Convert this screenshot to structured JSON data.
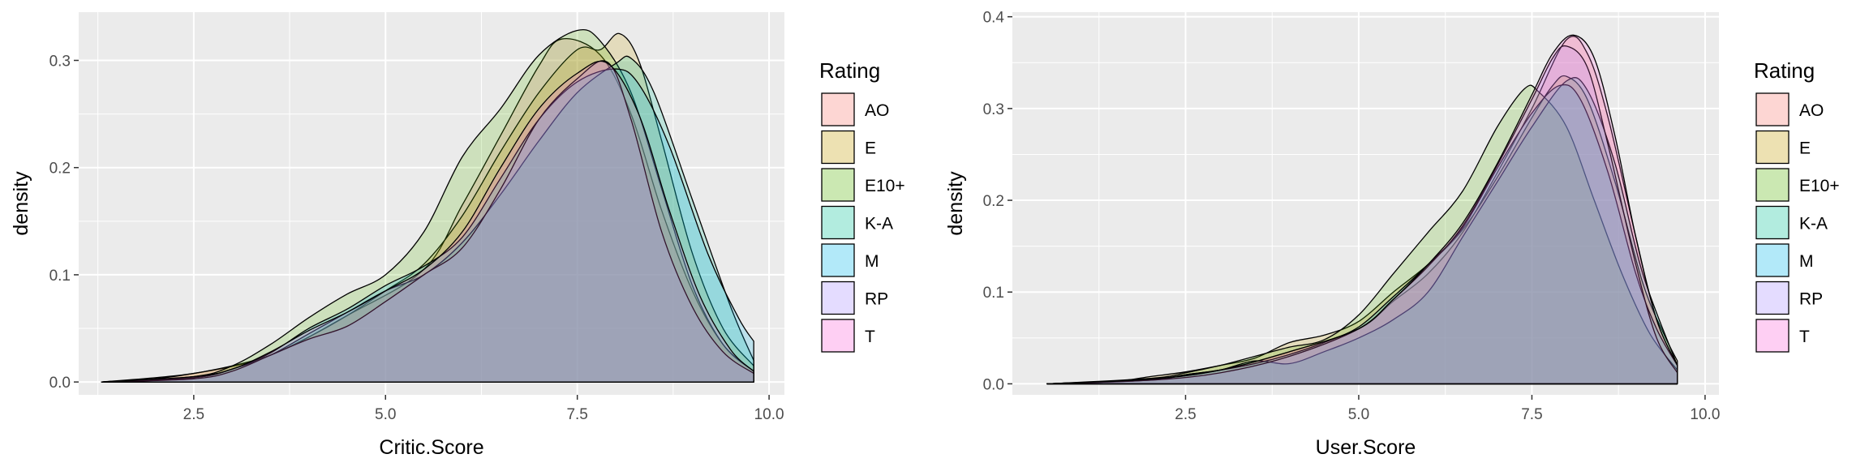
{
  "chart_data": [
    {
      "type": "area",
      "title": "",
      "xlabel": "Critic.Score",
      "ylabel": "density",
      "xlim": [
        1.0,
        10.2
      ],
      "ylim": [
        -0.012,
        0.345
      ],
      "x_ticks": [
        2.5,
        5.0,
        7.5,
        10.0
      ],
      "x_tick_labels": [
        "2.5",
        "5.0",
        "7.5",
        "10.0"
      ],
      "y_ticks": [
        0.0,
        0.1,
        0.2,
        0.3
      ],
      "y_tick_labels": [
        "0.0",
        "0.1",
        "0.2",
        "0.3"
      ],
      "grid": true,
      "legend_title": "Rating",
      "legend_position": "right",
      "series": [
        {
          "name": "AO",
          "color": "#F8766D",
          "points": [
            [
              1.3,
              0
            ],
            [
              2.5,
              0.008
            ],
            [
              3.5,
              0.025
            ],
            [
              4.5,
              0.062
            ],
            [
              5.5,
              0.105
            ],
            [
              6.0,
              0.165
            ],
            [
              6.5,
              0.23
            ],
            [
              7.0,
              0.295
            ],
            [
              7.3,
              0.32
            ],
            [
              7.8,
              0.305
            ],
            [
              8.2,
              0.25
            ],
            [
              8.6,
              0.16
            ],
            [
              9.0,
              0.085
            ],
            [
              9.4,
              0.035
            ],
            [
              9.8,
              0.01
            ]
          ]
        },
        {
          "name": "E",
          "color": "#C49A00",
          "points": [
            [
              1.3,
              0
            ],
            [
              2.0,
              0.003
            ],
            [
              2.5,
              0.008
            ],
            [
              3.0,
              0.015
            ],
            [
              3.5,
              0.025
            ],
            [
              4.0,
              0.042
            ],
            [
              4.5,
              0.062
            ],
            [
              5.0,
              0.085
            ],
            [
              5.5,
              0.11
            ],
            [
              6.0,
              0.155
            ],
            [
              6.5,
              0.215
            ],
            [
              7.0,
              0.27
            ],
            [
              7.5,
              0.31
            ],
            [
              7.8,
              0.31
            ],
            [
              8.05,
              0.325
            ],
            [
              8.3,
              0.3
            ],
            [
              8.6,
              0.225
            ],
            [
              9.0,
              0.12
            ],
            [
              9.4,
              0.05
            ],
            [
              9.8,
              0.015
            ]
          ]
        },
        {
          "name": "E10+",
          "color": "#53B400",
          "points": [
            [
              1.3,
              0
            ],
            [
              2.5,
              0.005
            ],
            [
              3.0,
              0.015
            ],
            [
              3.5,
              0.035
            ],
            [
              4.0,
              0.06
            ],
            [
              4.5,
              0.082
            ],
            [
              5.0,
              0.1
            ],
            [
              5.5,
              0.14
            ],
            [
              6.0,
              0.21
            ],
            [
              6.5,
              0.255
            ],
            [
              7.0,
              0.305
            ],
            [
              7.5,
              0.328
            ],
            [
              7.8,
              0.318
            ],
            [
              8.2,
              0.27
            ],
            [
              8.6,
              0.18
            ],
            [
              9.0,
              0.09
            ],
            [
              9.4,
              0.035
            ],
            [
              9.8,
              0.01
            ]
          ]
        },
        {
          "name": "K-A",
          "color": "#00C094",
          "points": [
            [
              1.3,
              0
            ],
            [
              2.5,
              0.004
            ],
            [
              3.0,
              0.012
            ],
            [
              3.5,
              0.025
            ],
            [
              4.0,
              0.045
            ],
            [
              4.5,
              0.065
            ],
            [
              5.0,
              0.085
            ],
            [
              5.5,
              0.1
            ],
            [
              6.0,
              0.13
            ],
            [
              6.5,
              0.175
            ],
            [
              7.0,
              0.225
            ],
            [
              7.5,
              0.27
            ],
            [
              8.0,
              0.297
            ],
            [
              8.2,
              0.302
            ],
            [
              8.5,
              0.27
            ],
            [
              9.0,
              0.17
            ],
            [
              9.5,
              0.07
            ],
            [
              9.8,
              0.02
            ]
          ]
        },
        {
          "name": "M",
          "color": "#00B6EB",
          "points": [
            [
              1.3,
              0
            ],
            [
              2.5,
              0.004
            ],
            [
              3.0,
              0.012
            ],
            [
              3.5,
              0.027
            ],
            [
              4.0,
              0.05
            ],
            [
              4.5,
              0.068
            ],
            [
              5.0,
              0.09
            ],
            [
              5.5,
              0.108
            ],
            [
              6.0,
              0.135
            ],
            [
              6.5,
              0.19
            ],
            [
              7.0,
              0.245
            ],
            [
              7.5,
              0.28
            ],
            [
              8.0,
              0.292
            ],
            [
              8.3,
              0.278
            ],
            [
              8.7,
              0.22
            ],
            [
              9.2,
              0.12
            ],
            [
              9.6,
              0.06
            ],
            [
              9.8,
              0.038
            ]
          ]
        },
        {
          "name": "RP",
          "color": "#A58AFF",
          "points": [
            [
              1.3,
              0
            ],
            [
              2.5,
              0.003
            ],
            [
              3.0,
              0.01
            ],
            [
              3.5,
              0.025
            ],
            [
              4.0,
              0.04
            ],
            [
              4.5,
              0.052
            ],
            [
              5.0,
              0.075
            ],
            [
              5.5,
              0.1
            ],
            [
              6.0,
              0.125
            ],
            [
              6.5,
              0.18
            ],
            [
              7.0,
              0.245
            ],
            [
              7.5,
              0.283
            ],
            [
              7.9,
              0.298
            ],
            [
              8.2,
              0.245
            ],
            [
              8.6,
              0.14
            ],
            [
              9.0,
              0.07
            ],
            [
              9.4,
              0.028
            ],
            [
              9.8,
              0.008
            ]
          ]
        },
        {
          "name": "T",
          "color": "#FB61D7",
          "points": [
            [
              1.3,
              0
            ],
            [
              2.5,
              0.005
            ],
            [
              3.0,
              0.012
            ],
            [
              3.5,
              0.028
            ],
            [
              4.0,
              0.048
            ],
            [
              4.5,
              0.065
            ],
            [
              5.0,
              0.085
            ],
            [
              5.5,
              0.105
            ],
            [
              6.0,
              0.14
            ],
            [
              6.5,
              0.2
            ],
            [
              7.0,
              0.255
            ],
            [
              7.5,
              0.288
            ],
            [
              7.9,
              0.297
            ],
            [
              8.3,
              0.25
            ],
            [
              8.7,
              0.16
            ],
            [
              9.1,
              0.08
            ],
            [
              9.5,
              0.03
            ],
            [
              9.8,
              0.01
            ]
          ]
        }
      ]
    },
    {
      "type": "area",
      "title": "",
      "xlabel": "User.Score",
      "ylabel": "density",
      "xlim": [
        0.0,
        10.2
      ],
      "ylim": [
        -0.012,
        0.405
      ],
      "x_ticks": [
        2.5,
        5.0,
        7.5,
        10.0
      ],
      "x_tick_labels": [
        "2.5",
        "5.0",
        "7.5",
        "10.0"
      ],
      "y_ticks": [
        0.0,
        0.1,
        0.2,
        0.3,
        0.4
      ],
      "y_tick_labels": [
        "0.0",
        "0.1",
        "0.2",
        "0.3",
        "0.4"
      ],
      "grid": true,
      "legend_title": "Rating",
      "legend_position": "right",
      "series": [
        {
          "name": "AO",
          "color": "#F8766D",
          "points": [
            [
              0.5,
              0
            ],
            [
              2.0,
              0.005
            ],
            [
              3.0,
              0.015
            ],
            [
              4.0,
              0.035
            ],
            [
              5.0,
              0.06
            ],
            [
              5.5,
              0.09
            ],
            [
              6.0,
              0.12
            ],
            [
              6.5,
              0.165
            ],
            [
              7.0,
              0.23
            ],
            [
              7.5,
              0.3
            ],
            [
              8.0,
              0.375
            ],
            [
              8.3,
              0.36
            ],
            [
              8.6,
              0.29
            ],
            [
              9.0,
              0.16
            ],
            [
              9.3,
              0.07
            ],
            [
              9.6,
              0.02
            ]
          ]
        },
        {
          "name": "E",
          "color": "#C49A00",
          "points": [
            [
              0.5,
              0
            ],
            [
              1.5,
              0.003
            ],
            [
              2.0,
              0.008
            ],
            [
              2.5,
              0.013
            ],
            [
              3.0,
              0.02
            ],
            [
              3.5,
              0.028
            ],
            [
              4.0,
              0.045
            ],
            [
              4.5,
              0.053
            ],
            [
              5.0,
              0.068
            ],
            [
              5.5,
              0.1
            ],
            [
              6.0,
              0.13
            ],
            [
              6.5,
              0.168
            ],
            [
              7.0,
              0.225
            ],
            [
              7.5,
              0.29
            ],
            [
              7.8,
              0.325
            ],
            [
              8.0,
              0.335
            ],
            [
              8.3,
              0.31
            ],
            [
              8.7,
              0.22
            ],
            [
              9.1,
              0.11
            ],
            [
              9.4,
              0.055
            ],
            [
              9.6,
              0.025
            ]
          ]
        },
        {
          "name": "E10+",
          "color": "#53B400",
          "points": [
            [
              0.5,
              0
            ],
            [
              2.0,
              0.006
            ],
            [
              2.5,
              0.012
            ],
            [
              3.0,
              0.02
            ],
            [
              3.5,
              0.03
            ],
            [
              4.0,
              0.04
            ],
            [
              4.5,
              0.048
            ],
            [
              5.0,
              0.075
            ],
            [
              5.5,
              0.12
            ],
            [
              6.0,
              0.165
            ],
            [
              6.5,
              0.21
            ],
            [
              7.0,
              0.28
            ],
            [
              7.4,
              0.322
            ],
            [
              7.6,
              0.318
            ],
            [
              8.0,
              0.28
            ],
            [
              8.4,
              0.2
            ],
            [
              8.8,
              0.12
            ],
            [
              9.2,
              0.055
            ],
            [
              9.6,
              0.015
            ]
          ]
        },
        {
          "name": "K-A",
          "color": "#00C094",
          "points": [
            [
              0.5,
              0
            ],
            [
              2.0,
              0.004
            ],
            [
              2.5,
              0.01
            ],
            [
              3.0,
              0.015
            ],
            [
              3.5,
              0.025
            ],
            [
              4.0,
              0.022
            ],
            [
              4.5,
              0.035
            ],
            [
              5.0,
              0.05
            ],
            [
              5.5,
              0.07
            ],
            [
              6.0,
              0.1
            ],
            [
              6.5,
              0.16
            ],
            [
              7.0,
              0.22
            ],
            [
              7.5,
              0.28
            ],
            [
              8.0,
              0.33
            ],
            [
              8.3,
              0.32
            ],
            [
              8.7,
              0.24
            ],
            [
              9.1,
              0.12
            ],
            [
              9.6,
              0.02
            ]
          ]
        },
        {
          "name": "M",
          "color": "#00B6EB",
          "points": [
            [
              0.5,
              0
            ],
            [
              2.0,
              0.005
            ],
            [
              2.5,
              0.01
            ],
            [
              3.0,
              0.015
            ],
            [
              3.5,
              0.022
            ],
            [
              4.0,
              0.032
            ],
            [
              4.5,
              0.045
            ],
            [
              5.0,
              0.062
            ],
            [
              5.5,
              0.095
            ],
            [
              6.0,
              0.13
            ],
            [
              6.5,
              0.17
            ],
            [
              7.0,
              0.235
            ],
            [
              7.5,
              0.295
            ],
            [
              7.9,
              0.325
            ],
            [
              8.2,
              0.31
            ],
            [
              8.6,
              0.23
            ],
            [
              9.0,
              0.12
            ],
            [
              9.3,
              0.06
            ],
            [
              9.6,
              0.02
            ]
          ]
        },
        {
          "name": "RP",
          "color": "#A58AFF",
          "points": [
            [
              0.5,
              0
            ],
            [
              2.0,
              0.004
            ],
            [
              3.0,
              0.012
            ],
            [
              4.0,
              0.03
            ],
            [
              5.0,
              0.06
            ],
            [
              5.5,
              0.092
            ],
            [
              6.0,
              0.128
            ],
            [
              6.5,
              0.172
            ],
            [
              7.0,
              0.238
            ],
            [
              7.5,
              0.31
            ],
            [
              7.8,
              0.355
            ],
            [
              8.0,
              0.368
            ],
            [
              8.3,
              0.345
            ],
            [
              8.6,
              0.26
            ],
            [
              9.0,
              0.13
            ],
            [
              9.3,
              0.05
            ],
            [
              9.6,
              0.012
            ]
          ]
        },
        {
          "name": "T",
          "color": "#FB61D7",
          "points": [
            [
              0.5,
              0
            ],
            [
              2.0,
              0.005
            ],
            [
              3.0,
              0.015
            ],
            [
              4.0,
              0.035
            ],
            [
              5.0,
              0.06
            ],
            [
              5.5,
              0.092
            ],
            [
              6.0,
              0.13
            ],
            [
              6.5,
              0.175
            ],
            [
              7.0,
              0.24
            ],
            [
              7.5,
              0.315
            ],
            [
              7.8,
              0.36
            ],
            [
              8.1,
              0.38
            ],
            [
              8.4,
              0.355
            ],
            [
              8.7,
              0.27
            ],
            [
              9.0,
              0.16
            ],
            [
              9.3,
              0.07
            ],
            [
              9.6,
              0.02
            ]
          ]
        }
      ]
    }
  ]
}
